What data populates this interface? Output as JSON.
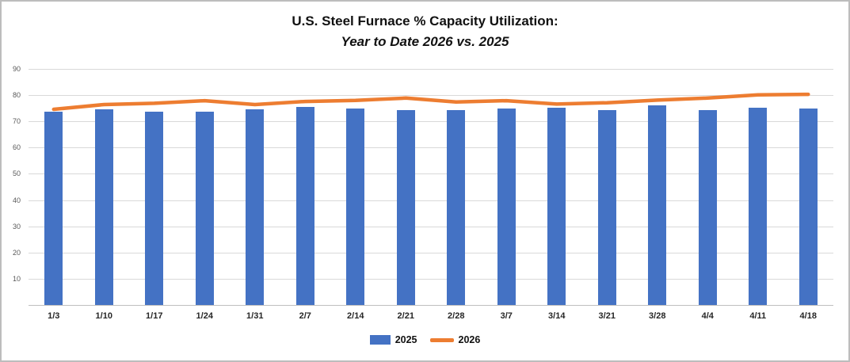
{
  "title": {
    "line1": "U.S. Steel Furnace % Capacity Utilization:",
    "line2": "Year to Date 2026 vs. 2025"
  },
  "chart_data": {
    "type": "bar",
    "title": "U.S. Steel Furnace % Capacity Utilization: Year to Date 2026 vs. 2025",
    "categories": [
      "1/3",
      "1/10",
      "1/17",
      "1/24",
      "1/31",
      "2/7",
      "2/14",
      "2/21",
      "2/28",
      "3/7",
      "3/14",
      "3/21",
      "3/28",
      "4/4",
      "4/11",
      "4/18"
    ],
    "series": [
      {
        "name": "2025",
        "type": "bar",
        "color": "#4472C4",
        "values": [
          73.6,
          74.5,
          73.6,
          73.7,
          74.5,
          75.4,
          75.0,
          74.3,
          74.2,
          74.9,
          75.2,
          74.3,
          76.1,
          74.3,
          75.2,
          74.9
        ]
      },
      {
        "name": "2026",
        "type": "line",
        "color": "#ED7D31",
        "values": [
          74.6,
          76.4,
          76.9,
          77.9,
          76.4,
          77.6,
          78.0,
          78.9,
          77.4,
          77.9,
          76.6,
          77.1,
          78.1,
          78.9,
          80.1,
          80.3
        ]
      }
    ],
    "xlabel": "",
    "ylabel": "",
    "ylim": [
      0,
      90
    ],
    "ytick_step": 10,
    "yticks": [
      10,
      20,
      30,
      40,
      50,
      60,
      70,
      80,
      90
    ],
    "grid": true,
    "legend_position": "bottom"
  },
  "colors": {
    "bar_fill": "#4472C4",
    "line_stroke": "#ED7D31",
    "gridline": "#d9d9d9",
    "axis_line": "#bfbfbf",
    "y_tick_text": "#595959",
    "x_tick_text": "#262626",
    "frame_border": "#bdbdbd"
  }
}
